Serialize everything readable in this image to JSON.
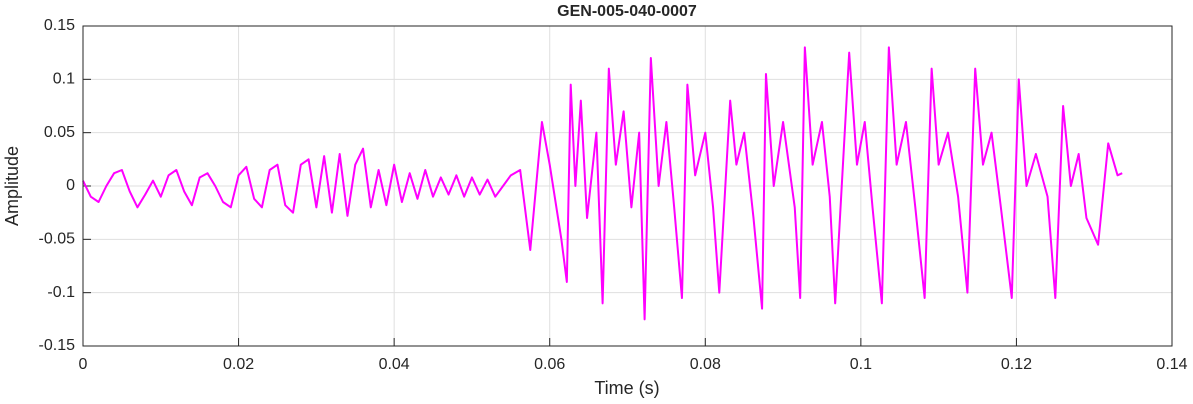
{
  "chart_data": {
    "type": "line",
    "title": "GEN-005-040-0007",
    "xlabel": "Time (s)",
    "ylabel": "Amplitude",
    "xlim": [
      0,
      0.14
    ],
    "ylim": [
      -0.15,
      0.15
    ],
    "xticks": [
      0,
      0.02,
      0.04,
      0.06,
      0.08,
      0.1,
      0.12,
      0.14
    ],
    "yticks": [
      -0.15,
      -0.1,
      -0.05,
      0,
      0.05,
      0.1,
      0.15
    ],
    "grid": true,
    "series": [
      {
        "color": "#ff00ff",
        "x": [
          0,
          0.001,
          0.002,
          0.003,
          0.004,
          0.005,
          0.006,
          0.007,
          0.008,
          0.009,
          0.01,
          0.011,
          0.012,
          0.013,
          0.014,
          0.015,
          0.016,
          0.017,
          0.018,
          0.019,
          0.02,
          0.021,
          0.022,
          0.023,
          0.024,
          0.025,
          0.026,
          0.027,
          0.028,
          0.029,
          0.03,
          0.031,
          0.032,
          0.033,
          0.034,
          0.035,
          0.036,
          0.037,
          0.038,
          0.039,
          0.04,
          0.041,
          0.042,
          0.043,
          0.044,
          0.045,
          0.046,
          0.047,
          0.048,
          0.049,
          0.05,
          0.051,
          0.052,
          0.053,
          0.054,
          0.055,
          0.0562,
          0.0575,
          0.059,
          0.06,
          0.0615,
          0.0622,
          0.0627,
          0.0633,
          0.064,
          0.0648,
          0.066,
          0.0668,
          0.0676,
          0.0685,
          0.0695,
          0.0705,
          0.0715,
          0.0722,
          0.073,
          0.074,
          0.075,
          0.076,
          0.077,
          0.0777,
          0.0787,
          0.08,
          0.081,
          0.0818,
          0.0832,
          0.084,
          0.085,
          0.0862,
          0.0873,
          0.0878,
          0.0888,
          0.09,
          0.0915,
          0.0922,
          0.0928,
          0.0938,
          0.095,
          0.096,
          0.0967,
          0.0985,
          0.0995,
          0.1005,
          0.1015,
          0.1027,
          0.1036,
          0.1046,
          0.1058,
          0.107,
          0.1082,
          0.1091,
          0.11,
          0.1112,
          0.1125,
          0.1137,
          0.1147,
          0.1157,
          0.1168,
          0.118,
          0.1194,
          0.1203,
          0.1213,
          0.1225,
          0.124,
          0.125,
          0.126,
          0.127,
          0.128,
          0.129,
          0.1305,
          0.1318,
          0.133,
          0.1336
        ],
        "values": [
          0.005,
          -0.01,
          -0.015,
          0.0,
          0.012,
          0.015,
          -0.005,
          -0.02,
          -0.008,
          0.005,
          -0.01,
          0.01,
          0.015,
          -0.005,
          -0.018,
          0.008,
          0.012,
          0.0,
          -0.015,
          -0.02,
          0.01,
          0.018,
          -0.012,
          -0.02,
          0.015,
          0.02,
          -0.018,
          -0.025,
          0.02,
          0.025,
          -0.02,
          0.028,
          -0.025,
          0.03,
          -0.028,
          0.02,
          0.035,
          -0.02,
          0.015,
          -0.018,
          0.02,
          -0.015,
          0.012,
          -0.012,
          0.015,
          -0.01,
          0.008,
          -0.008,
          0.01,
          -0.01,
          0.008,
          -0.008,
          0.006,
          -0.01,
          0.0,
          0.01,
          0.015,
          -0.06,
          0.06,
          0.02,
          -0.05,
          -0.09,
          0.095,
          0.0,
          0.08,
          -0.03,
          0.05,
          -0.11,
          0.11,
          0.02,
          0.07,
          -0.02,
          0.05,
          -0.125,
          0.12,
          0.0,
          0.06,
          -0.02,
          -0.105,
          0.095,
          0.01,
          0.05,
          -0.02,
          -0.1,
          0.08,
          0.02,
          0.05,
          -0.03,
          -0.115,
          0.105,
          0.0,
          0.06,
          -0.02,
          -0.105,
          0.13,
          0.02,
          0.06,
          -0.01,
          -0.11,
          0.125,
          0.02,
          0.06,
          -0.02,
          -0.11,
          0.13,
          0.02,
          0.06,
          -0.02,
          -0.105,
          0.11,
          0.02,
          0.05,
          -0.01,
          -0.1,
          0.11,
          0.02,
          0.05,
          -0.02,
          -0.105,
          0.1,
          0.0,
          0.03,
          -0.01,
          -0.105,
          0.075,
          0.0,
          0.03,
          -0.03,
          -0.055,
          0.04,
          0.01,
          0.012
        ]
      }
    ]
  }
}
